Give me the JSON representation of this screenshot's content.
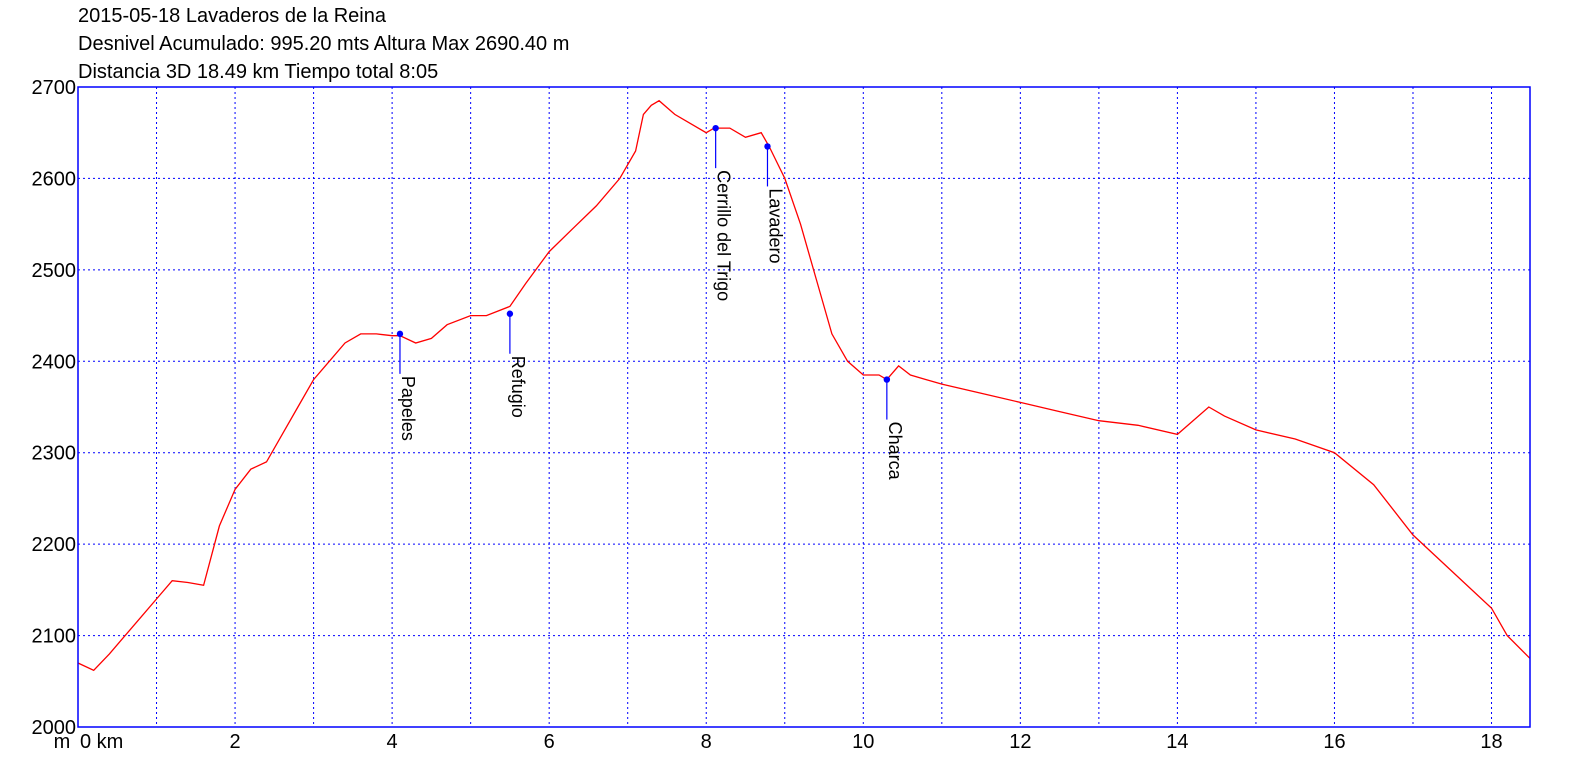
{
  "header": {
    "line1": "2015-05-18 Lavaderos de la Reina",
    "line2": "Desnivel Acumulado: 995.20 mts  Altura Max 2690.40 m",
    "line3": "Distancia 3D 18.49 km  Tiempo total 8:05"
  },
  "colors": {
    "profile": "#ff0000",
    "frame": "#0000ff",
    "grid": "#0000ff",
    "waypoint": "#0000ff"
  },
  "chart_data": {
    "type": "line",
    "title": "2015-05-18 Lavaderos de la Reina",
    "xlabel": "km",
    "ylabel": "m",
    "xlim": [
      0,
      18.49
    ],
    "ylim": [
      2000,
      2700
    ],
    "x_ticks": [
      0,
      2,
      4,
      6,
      8,
      10,
      12,
      14,
      16,
      18
    ],
    "x_tick_labels": [
      "0 km",
      "2",
      "4",
      "6",
      "8",
      "10",
      "12",
      "14",
      "16",
      "18"
    ],
    "y_ticks": [
      2000,
      2100,
      2200,
      2300,
      2400,
      2500,
      2600,
      2700
    ],
    "y_tick_labels": [
      "2000",
      "2100",
      "2200",
      "2300",
      "2400",
      "2500",
      "2600",
      "2700"
    ],
    "y_unit_label": "m",
    "grid": true,
    "series": [
      {
        "x": [
          0,
          0.2,
          0.4,
          0.6,
          0.8,
          1.0,
          1.2,
          1.4,
          1.6,
          1.8,
          2.0,
          2.2,
          2.4,
          2.6,
          2.8,
          3.0,
          3.2,
          3.4,
          3.6,
          3.8,
          4.0,
          4.1,
          4.3,
          4.5,
          4.7,
          5.0,
          5.2,
          5.5,
          5.7,
          6.0,
          6.3,
          6.6,
          6.9,
          7.1,
          7.2,
          7.3,
          7.4,
          7.6,
          7.8,
          8.0,
          8.1,
          8.3,
          8.5,
          8.7,
          8.8,
          9.0,
          9.2,
          9.4,
          9.6,
          9.8,
          10.0,
          10.2,
          10.3,
          10.45,
          10.6,
          10.8,
          11.0,
          11.5,
          12.0,
          12.5,
          13.0,
          13.5,
          14.0,
          14.4,
          14.6,
          15.0,
          15.5,
          16.0,
          16.5,
          17.0,
          17.5,
          18.0,
          18.2,
          18.49
        ],
        "values": [
          2070,
          2062,
          2080,
          2100,
          2120,
          2140,
          2160,
          2158,
          2155,
          2220,
          2260,
          2282,
          2290,
          2320,
          2350,
          2380,
          2400,
          2420,
          2430,
          2430,
          2428,
          2428,
          2420,
          2425,
          2440,
          2450,
          2450,
          2460,
          2485,
          2520,
          2545,
          2570,
          2600,
          2630,
          2670,
          2680,
          2685,
          2670,
          2660,
          2650,
          2655,
          2655,
          2645,
          2650,
          2635,
          2600,
          2550,
          2490,
          2430,
          2400,
          2385,
          2385,
          2380,
          2395,
          2385,
          2380,
          2375,
          2365,
          2355,
          2345,
          2335,
          2330,
          2320,
          2350,
          2340,
          2325,
          2315,
          2300,
          2265,
          2210,
          2170,
          2130,
          2100,
          2075
        ]
      }
    ],
    "annotations": [
      {
        "label": "Papeles",
        "x": 4.1,
        "y": 2430
      },
      {
        "label": "Refugio",
        "x": 5.5,
        "y": 2452
      },
      {
        "label": "Cerrillo del Trigo",
        "x": 8.12,
        "y": 2655
      },
      {
        "label": "Lavadero",
        "x": 8.78,
        "y": 2635
      },
      {
        "label": "Charca",
        "x": 10.3,
        "y": 2380
      }
    ]
  }
}
